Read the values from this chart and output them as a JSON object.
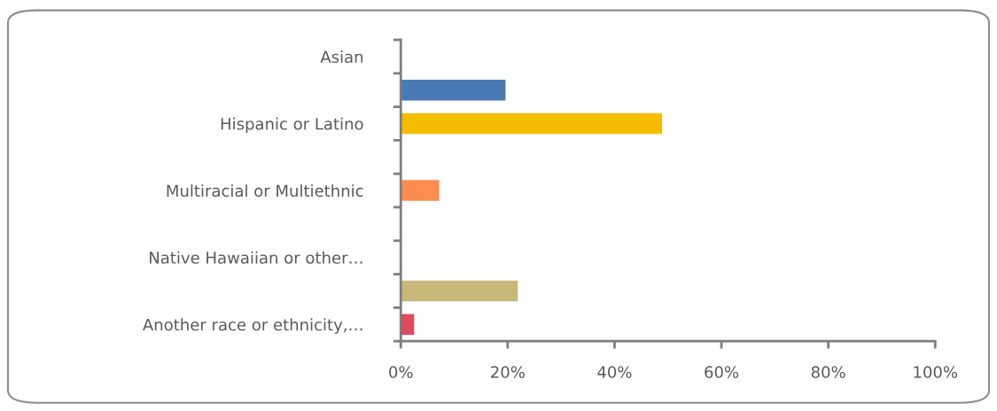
{
  "chart_data": {
    "type": "bar",
    "orientation": "horizontal",
    "categories": [
      "Asian",
      null,
      "Hispanic or Latino",
      null,
      "Multiracial or Multiethnic",
      null,
      "Native Hawaiian or other…",
      null,
      "Another race or ethnicity,…"
    ],
    "values": [
      0,
      19.6,
      48.9,
      0,
      7.2,
      0,
      0,
      21.9,
      2.5
    ],
    "colors": [
      "#4a7ab5",
      "#4a7ab5",
      "#f5bd00",
      "#ff8c4f",
      "#ff8c4f",
      "#9e9e9e",
      "#c8b87a",
      "#c8b87a",
      "#e04a5e"
    ],
    "xlim": [
      0,
      100
    ],
    "xticks": [
      {
        "value": 0,
        "label": "0%"
      },
      {
        "value": 20,
        "label": "20%"
      },
      {
        "value": 40,
        "label": "40%"
      },
      {
        "value": 60,
        "label": "60%"
      },
      {
        "value": 80,
        "label": "80%"
      },
      {
        "value": 100,
        "label": "100%"
      }
    ],
    "grid": false,
    "legend": false
  }
}
